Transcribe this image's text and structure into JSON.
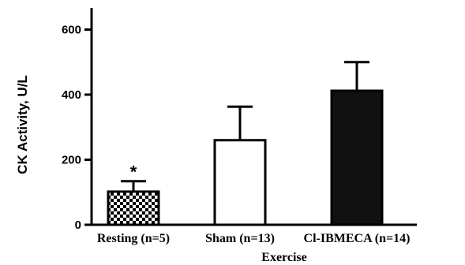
{
  "chart_data": {
    "type": "bar",
    "ylabel": "CK Activity, U/L",
    "xlabel": "Exercise",
    "ylim": [
      0,
      650
    ],
    "yticks": [
      0,
      200,
      400,
      600
    ],
    "grid": false,
    "categories": [
      "Resting (n=5)",
      "Sham (n=13)",
      "Cl-IBMECA (n=14)"
    ],
    "values": [
      102,
      260,
      412
    ],
    "errors": [
      32,
      103,
      88
    ],
    "fills": [
      "checker",
      "#ffffff",
      "#111111"
    ],
    "annotations": [
      {
        "category_index": 0,
        "text": "*"
      }
    ]
  }
}
